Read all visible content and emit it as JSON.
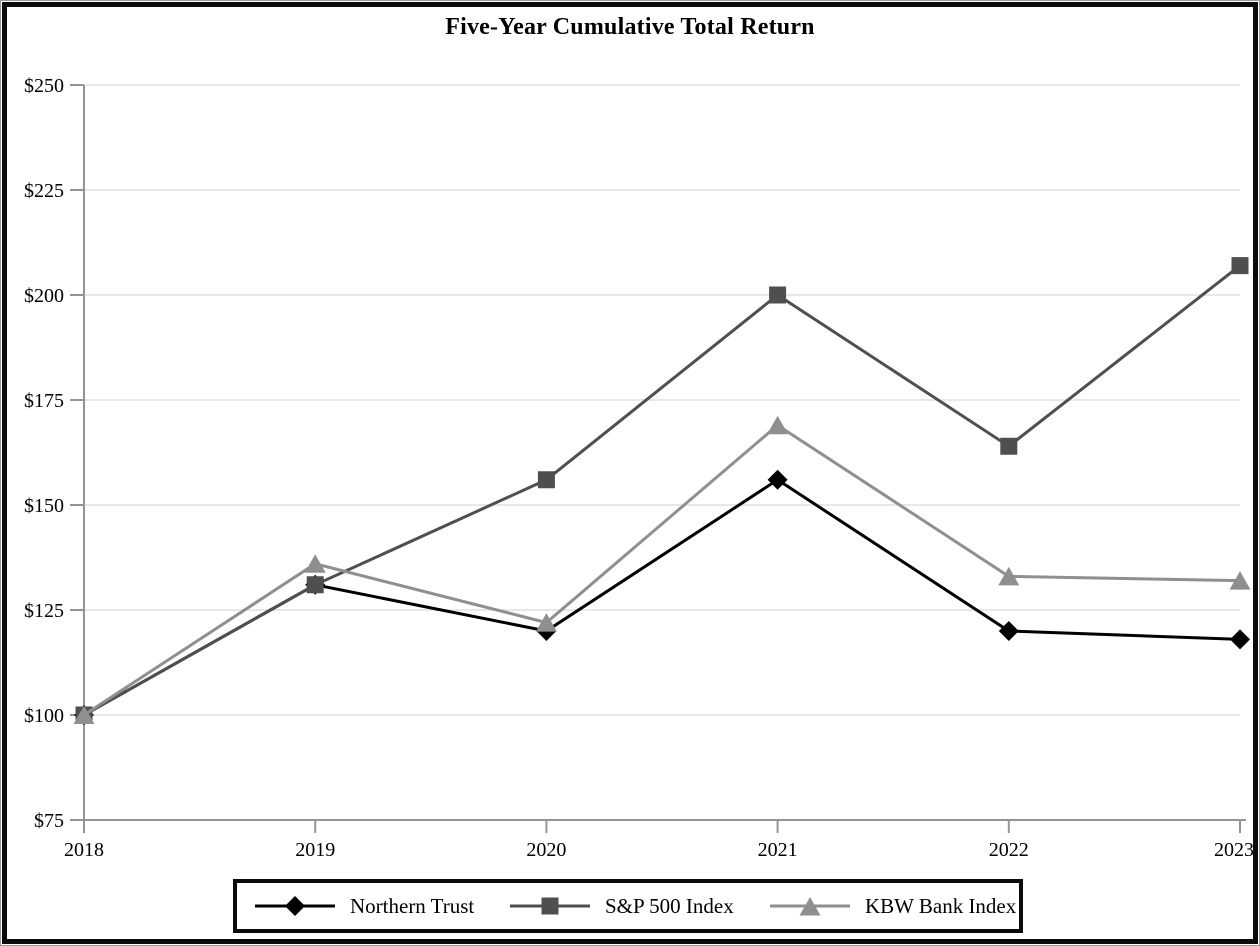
{
  "title": "Five-Year Cumulative Total Return",
  "colors": {
    "northern_trust": "#000000",
    "sp500_index": "#4f4f4f",
    "kbw_bank_index": "#8f8f8f",
    "gridline": "#e8e8e8",
    "axis": "#949494",
    "frame": "#0b0b0b",
    "text": "#000000",
    "background": "#ffffff"
  },
  "chart_data": {
    "type": "line",
    "title": "Five-Year Cumulative Total Return",
    "categories": [
      "2018",
      "2019",
      "2020",
      "2021",
      "2022",
      "2023"
    ],
    "series": [
      {
        "name": "Northern Trust",
        "marker": "diamond",
        "color": "#000000",
        "values": [
          100,
          131,
          120,
          156,
          120,
          118
        ]
      },
      {
        "name": "S&P 500 Index",
        "marker": "square",
        "color": "#4f4f4f",
        "values": [
          100,
          131,
          156,
          200,
          164,
          207
        ]
      },
      {
        "name": "KBW Bank Index",
        "marker": "triangle",
        "color": "#8f8f8f",
        "values": [
          100,
          136,
          122,
          169,
          133,
          132
        ]
      }
    ],
    "xlabel": "",
    "ylabel": "",
    "ylim": [
      75,
      250
    ],
    "y_tick_step": 25,
    "y_tick_labels": [
      "$75",
      "$100",
      "$125",
      "$150",
      "$175",
      "$200",
      "$225",
      "$250"
    ],
    "x_tick_labels": [
      "2018",
      "2019",
      "2020",
      "2021",
      "2022",
      "2023"
    ],
    "grid": "horizontal",
    "legend_position": "bottom"
  }
}
